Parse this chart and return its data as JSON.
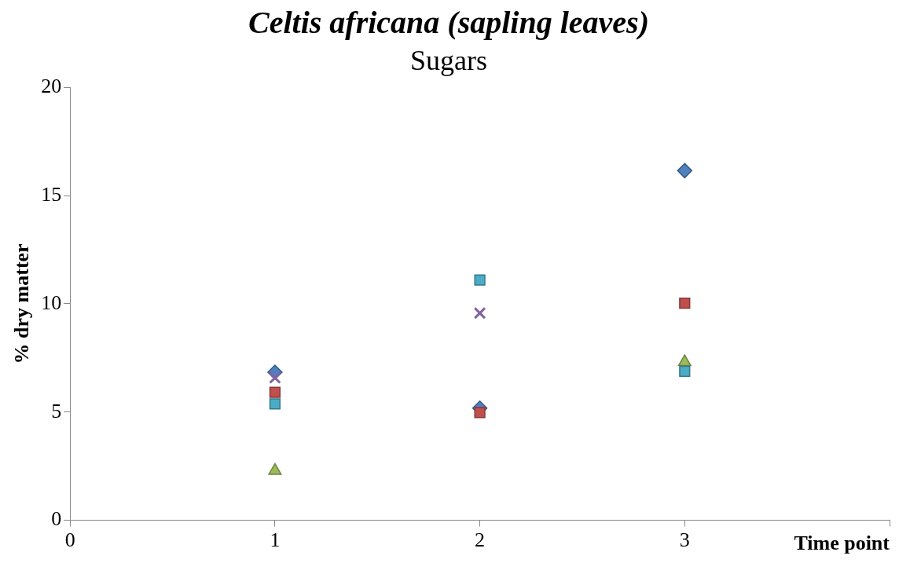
{
  "chart_data": {
    "type": "scatter",
    "title": "Celtis africana (sapling leaves)",
    "subtitle": "Sugars",
    "xlabel": "Time point",
    "ylabel": "% dry matter",
    "x": [
      1,
      2,
      3
    ],
    "xlim": [
      0,
      4
    ],
    "xticks": [
      0,
      1,
      2,
      3,
      {
        "value": 4,
        "label": null
      }
    ],
    "ylim": [
      0,
      20
    ],
    "yticks": [
      0,
      5,
      10,
      15,
      20
    ],
    "grid": false,
    "legend": false,
    "series": [
      {
        "color": "#4f81bd",
        "marker": "diamond",
        "values": [
          6.84,
          5.18,
          16.15
        ]
      },
      {
        "color": "#c0504d",
        "marker": "square",
        "values": [
          5.91,
          4.98,
          10.03
        ]
      },
      {
        "color": "#9bbb59",
        "marker": "triangle",
        "values": [
          2.29,
          null,
          7.31
        ]
      },
      {
        "color": "#8064a2",
        "marker": "cross",
        "values": [
          6.58,
          9.57,
          null
        ]
      },
      {
        "color": "#4bacc6",
        "marker": "square",
        "values": [
          5.38,
          11.1,
          6.88
        ]
      }
    ]
  }
}
